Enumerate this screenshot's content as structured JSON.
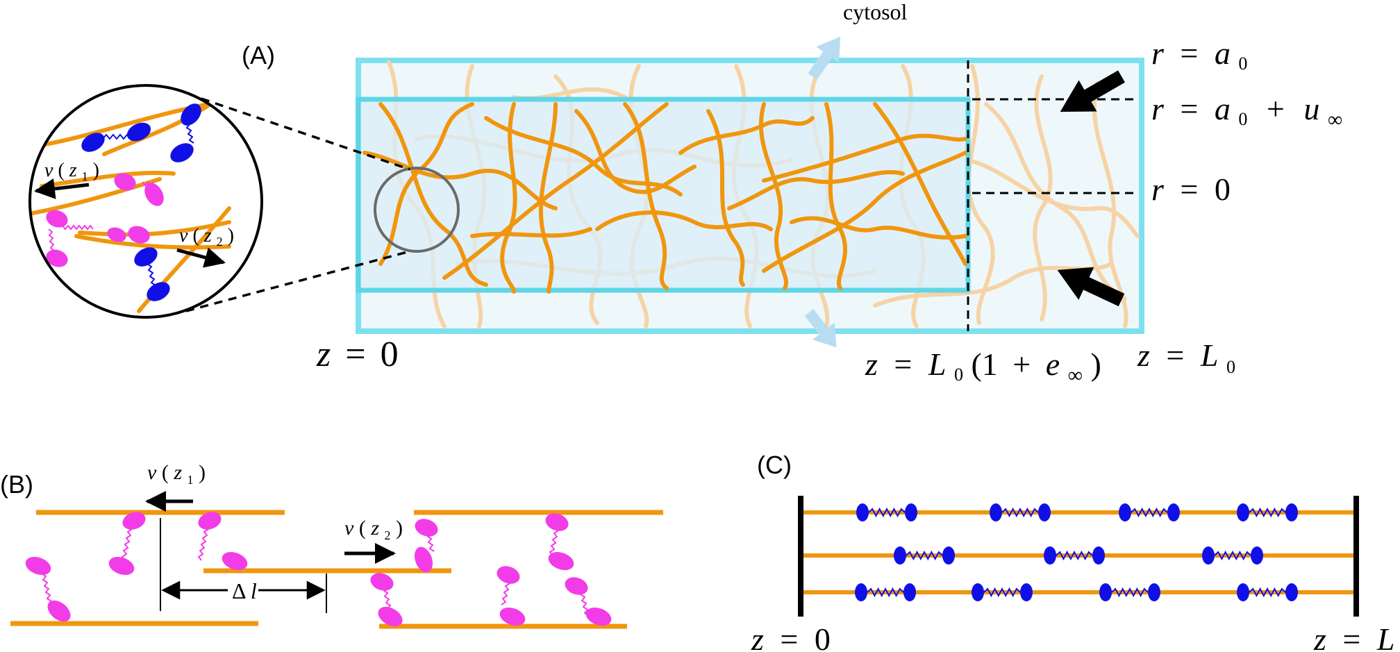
{
  "panels": {
    "a": {
      "label": "(A)",
      "cytosol_label": "cytosol",
      "r_a0": {
        "lhs": "r",
        "op": "=",
        "var": "a",
        "sub": "0"
      },
      "r_a0_uinf": {
        "lhs": "r",
        "op": "=",
        "var": "a",
        "sub": "0",
        "plus": "+",
        "var2": "u",
        "sub2": "∞"
      },
      "r_zero": {
        "lhs": "r",
        "op": "=",
        "val": "0"
      },
      "z_zero": {
        "lhs": "z",
        "op": "=",
        "val": "0"
      },
      "z_mid": {
        "lhs": "z",
        "op": "=",
        "var": "L",
        "sub": "0",
        "open": "(1",
        "plus": "+",
        "var2": "e",
        "sub2": "∞",
        "close": ")"
      },
      "z_L0": {
        "lhs": "z",
        "op": "=",
        "var": "L",
        "sub": "0"
      },
      "inset_v1": {
        "v": "v",
        "open": "(",
        "z": "z",
        "sub": "1",
        "close": ")"
      },
      "inset_v2": {
        "v": "v",
        "open": "(",
        "z": "z",
        "sub": "2",
        "close": ")"
      }
    },
    "b": {
      "label": "(B)",
      "v1": {
        "v": "v",
        "open": "(",
        "z": "z",
        "sub": "1",
        "close": ")"
      },
      "v2": {
        "v": "v",
        "open": "(",
        "z": "z",
        "sub": "2",
        "close": ")"
      },
      "delta_l": {
        "delta": "Δ",
        "l": "l"
      }
    },
    "c": {
      "label": "(C)",
      "z_zero": {
        "lhs": "z",
        "op": "=",
        "val": "0"
      },
      "z_L": {
        "lhs": "z",
        "op": "=",
        "var": "L"
      }
    }
  },
  "colors": {
    "filament": "#f0960e",
    "filament_faint": "#f6d3a6",
    "tube_border": "#7ee0ee",
    "tube_fill": "#eef8fb",
    "inner_fill": "#d9eef8",
    "inner_border": "#5ed6e6",
    "arrow_light": "#b8ddf3",
    "motor_pink": "#f23ce8",
    "motor_blue": "#1010e6",
    "black": "#000000",
    "gray": "#6a6a6a"
  }
}
